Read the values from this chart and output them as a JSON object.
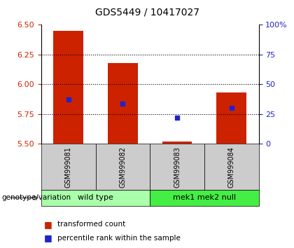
{
  "title": "GDS5449 / 10417027",
  "samples": [
    "GSM999081",
    "GSM999082",
    "GSM999083",
    "GSM999084"
  ],
  "bar_bottoms": [
    5.5,
    5.5,
    5.5,
    5.5
  ],
  "bar_tops": [
    6.45,
    6.18,
    5.52,
    5.93
  ],
  "blue_values": [
    5.875,
    5.84,
    5.72,
    5.8
  ],
  "ylim_left": [
    5.5,
    6.5
  ],
  "yticks_left": [
    5.5,
    5.75,
    6.0,
    6.25,
    6.5
  ],
  "yticks_right": [
    0,
    25,
    50,
    75,
    100
  ],
  "ylim_right": [
    0,
    100
  ],
  "bar_color": "#cc2200",
  "blue_color": "#2222cc",
  "bar_width": 0.55,
  "groups": [
    {
      "label": "wild type",
      "start": 0,
      "end": 1,
      "color": "#aaffaa"
    },
    {
      "label": "mek1 mek2 null",
      "start": 2,
      "end": 3,
      "color": "#44ee44"
    }
  ],
  "legend_red": "transformed count",
  "legend_blue": "percentile rank within the sample",
  "axis_label_color_left": "#cc2200",
  "axis_label_color_right": "#2222cc",
  "background_label": "#cccccc",
  "genotype_label": "genotype/variation"
}
